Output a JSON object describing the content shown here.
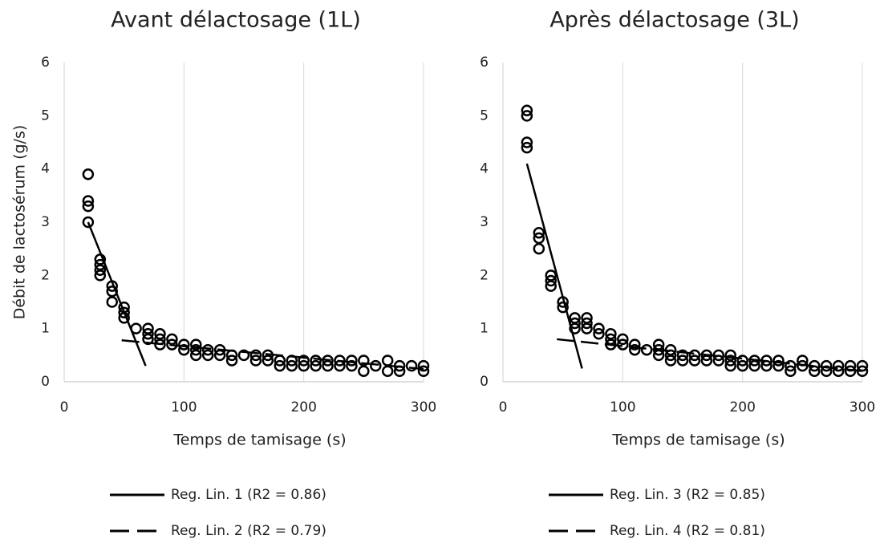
{
  "chart_data": [
    {
      "type": "scatter",
      "title": "Avant délactosage (1L)",
      "xlabel": "Temps de tamisage (s)",
      "ylabel": "Débit de lactosérum (g/s)",
      "xlim": [
        0,
        300
      ],
      "xticks": [
        0,
        100,
        200,
        300
      ],
      "ylim": [
        0,
        6
      ],
      "yticks": [
        0,
        1,
        2,
        3,
        4,
        5,
        6
      ],
      "grid": "x",
      "series": [
        {
          "color": "#000000",
          "style": "markers",
          "x": [
            20,
            20,
            20,
            20,
            30,
            30,
            30,
            30,
            40,
            40,
            40,
            50,
            50,
            50,
            60,
            70,
            70,
            70,
            80,
            80,
            80,
            90,
            90,
            100,
            100,
            110,
            110,
            110,
            120,
            120,
            130,
            130,
            140,
            140,
            150,
            160,
            160,
            170,
            170,
            180,
            180,
            190,
            190,
            200,
            200,
            210,
            210,
            220,
            220,
            230,
            230,
            240,
            240,
            250,
            250,
            260,
            270,
            270,
            280,
            280,
            290,
            300,
            300
          ],
          "values": [
            3.9,
            3.4,
            3.3,
            3.0,
            2.3,
            2.2,
            2.1,
            2.0,
            1.8,
            1.7,
            1.5,
            1.4,
            1.3,
            1.2,
            1.0,
            1.0,
            0.9,
            0.8,
            0.9,
            0.8,
            0.7,
            0.8,
            0.7,
            0.7,
            0.6,
            0.7,
            0.6,
            0.5,
            0.6,
            0.5,
            0.6,
            0.5,
            0.5,
            0.4,
            0.5,
            0.5,
            0.4,
            0.5,
            0.4,
            0.4,
            0.3,
            0.4,
            0.3,
            0.4,
            0.3,
            0.4,
            0.3,
            0.4,
            0.3,
            0.4,
            0.3,
            0.4,
            0.3,
            0.4,
            0.2,
            0.3,
            0.4,
            0.2,
            0.3,
            0.2,
            0.3,
            0.3,
            0.2
          ]
        },
        {
          "name": "Reg. Lin. 1 (R2 = 0.86)",
          "color": "#000000",
          "style": "solid",
          "x": [
            20,
            68
          ],
          "values": [
            3.0,
            0.3
          ]
        },
        {
          "name": "Reg. Lin. 2 (R2 = 0.79)",
          "color": "#000000",
          "style": "dashed",
          "x": [
            48,
            300
          ],
          "values": [
            0.78,
            0.24
          ]
        }
      ]
    },
    {
      "type": "scatter",
      "title": "Après délactosage (3L)",
      "xlabel": "Temps de tamisage (s)",
      "xlim": [
        0,
        300
      ],
      "xticks": [
        0,
        100,
        200,
        300
      ],
      "ylim": [
        0,
        6
      ],
      "yticks": [
        0,
        1,
        2,
        3,
        4,
        5,
        6
      ],
      "grid": "x",
      "series": [
        {
          "color": "#000000",
          "style": "markers",
          "x": [
            20,
            20,
            20,
            20,
            30,
            30,
            30,
            40,
            40,
            40,
            50,
            50,
            60,
            60,
            60,
            70,
            70,
            70,
            80,
            80,
            90,
            90,
            90,
            100,
            100,
            110,
            110,
            120,
            130,
            130,
            130,
            140,
            140,
            140,
            150,
            150,
            160,
            160,
            170,
            170,
            180,
            180,
            190,
            190,
            190,
            200,
            200,
            210,
            210,
            220,
            220,
            230,
            230,
            240,
            240,
            250,
            250,
            260,
            260,
            270,
            270,
            280,
            280,
            290,
            290,
            300,
            300
          ],
          "values": [
            5.1,
            5.0,
            4.5,
            4.4,
            2.8,
            2.7,
            2.5,
            2.0,
            1.9,
            1.8,
            1.5,
            1.4,
            1.2,
            1.1,
            1.0,
            1.2,
            1.1,
            1.0,
            1.0,
            0.9,
            0.9,
            0.8,
            0.7,
            0.8,
            0.7,
            0.7,
            0.6,
            0.6,
            0.7,
            0.6,
            0.5,
            0.6,
            0.5,
            0.4,
            0.5,
            0.4,
            0.5,
            0.4,
            0.5,
            0.4,
            0.5,
            0.4,
            0.5,
            0.4,
            0.3,
            0.4,
            0.3,
            0.4,
            0.3,
            0.4,
            0.3,
            0.4,
            0.3,
            0.3,
            0.2,
            0.4,
            0.3,
            0.3,
            0.2,
            0.3,
            0.2,
            0.3,
            0.2,
            0.3,
            0.2,
            0.3,
            0.2
          ]
        },
        {
          "name": "Reg. Lin. 3 (R2 = 0.85)",
          "color": "#000000",
          "style": "solid",
          "x": [
            20,
            66
          ],
          "values": [
            4.1,
            0.25
          ]
        },
        {
          "name": "Reg. Lin. 4 (R2 = 0.81)",
          "color": "#000000",
          "style": "dashed",
          "x": [
            45,
            300
          ],
          "values": [
            0.8,
            0.2
          ]
        }
      ]
    }
  ]
}
